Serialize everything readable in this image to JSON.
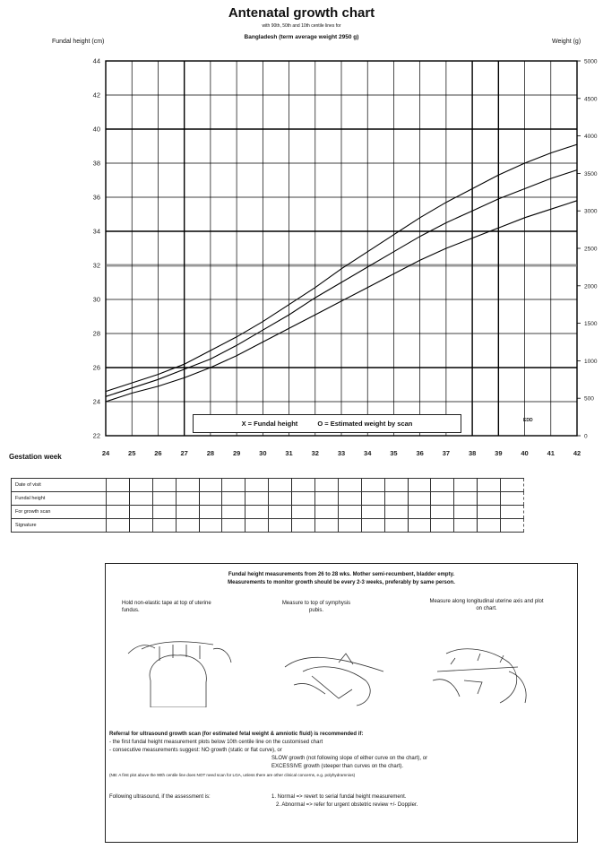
{
  "chart_data": {
    "type": "line",
    "title": "Antenatal growth chart",
    "subtitle": "with 90th, 50th and 10th centile lines for",
    "country_line": "Bangladesh  (term average weight 2950 g)",
    "ylabel_left": "Fundal height (cm)",
    "ylabel_right": "Weight (g)",
    "xlabel": "Gestation week",
    "x": [
      24,
      25,
      26,
      27,
      28,
      29,
      30,
      31,
      32,
      33,
      34,
      35,
      36,
      37,
      38,
      39,
      40,
      41,
      42
    ],
    "xlim": [
      24,
      42
    ],
    "ylim_left": [
      22,
      44
    ],
    "ylim_right": [
      0,
      5000
    ],
    "yticks_left": [
      22,
      24,
      26,
      28,
      30,
      32,
      34,
      36,
      38,
      40,
      42,
      44
    ],
    "yticks_right": [
      0,
      500,
      1000,
      1500,
      2000,
      2500,
      3000,
      3500,
      4000,
      4500,
      5000
    ],
    "series": [
      {
        "values": [
          24.6,
          25.1,
          25.6,
          26.2,
          27.0,
          27.8,
          28.7,
          29.7,
          30.7,
          31.8,
          32.8,
          33.8,
          34.8,
          35.7,
          36.5,
          37.3,
          38.0,
          38.6,
          39.1
        ]
      },
      {
        "values": [
          24.3,
          24.8,
          25.3,
          25.9,
          26.5,
          27.3,
          28.2,
          29.1,
          30.1,
          31.0,
          31.9,
          32.8,
          33.7,
          34.5,
          35.2,
          35.9,
          36.5,
          37.1,
          37.6
        ]
      },
      {
        "values": [
          24.0,
          24.5,
          24.9,
          25.4,
          26.0,
          26.7,
          27.5,
          28.3,
          29.1,
          29.9,
          30.7,
          31.5,
          32.3,
          33.0,
          33.6,
          34.2,
          34.8,
          35.3,
          35.8
        ]
      }
    ],
    "legend": {
      "fundal": "X = Fundal height",
      "weight": "O = Estimated weight by scan"
    },
    "corner_note": "EDD",
    "grid": true
  },
  "table": {
    "rows": [
      "Date of visit",
      "Fundal height",
      "For growth scan",
      "Signature"
    ]
  },
  "instructions": {
    "header1": "Fundal height measurements from 26 to 28 wks. Mother semi-recumbent, bladder empty.",
    "header2": "Measurements to monitor growth should be every 2-3 weeks, preferably by same person.",
    "step1": "Hold non-elastic tape at top of uterine fundus.",
    "step2": "Measure to top of symphysis pubis.",
    "step3": "Measure along longitudinal uterine axis and plot on chart.",
    "referral": "Referral for ultrasound growth scan (for estimated fetal weight & amniotic fluid) is recommended if:",
    "r1": "- the first fundal height measurement plots below 10th centile line on the customised chart",
    "r2": "- consecutive measurements suggest:  NO growth (static or flat curve), or",
    "r3": "SLOW growth (not following slope of either curve on the chart), or",
    "r4": "EXCESSIVE growth (steeper than curves on the chart).",
    "note": "(NB: A first plot above the 90th centile line does NOT need scan for LGA, unless there are other clinical concerns, e.g. polyhydramnios)",
    "following": "Following ultrasound, if the assessment is:",
    "f1": "1. Normal    => revert to serial fundal height measurement.",
    "f2": "2. Abnormal => refer for urgent obstetric review +/- Doppler."
  }
}
